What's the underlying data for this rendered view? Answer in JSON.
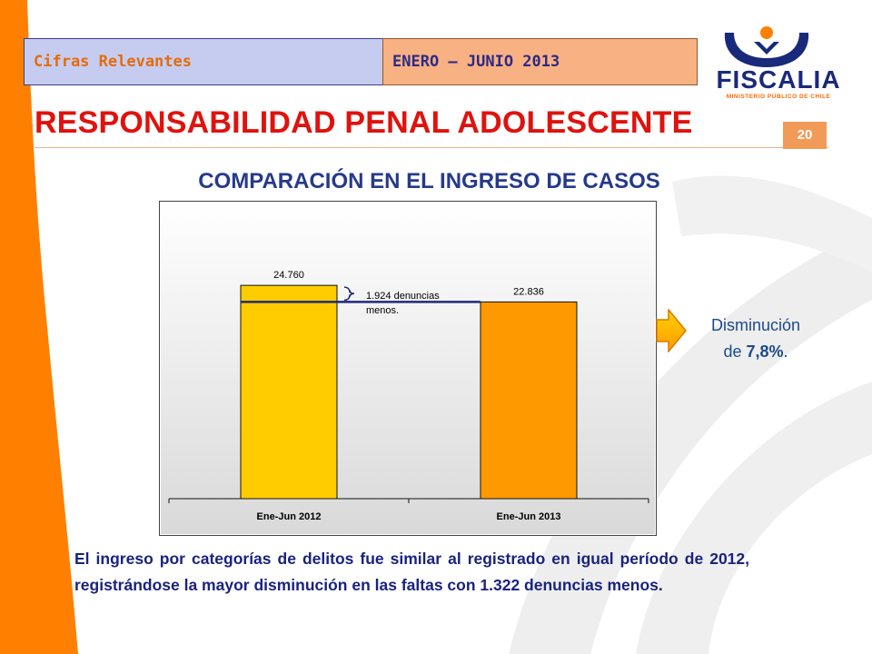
{
  "header": {
    "tab_left": "Cifras Relevantes",
    "tab_right": "ENERO – JUNIO 2013"
  },
  "logo": {
    "name": "FISCALIA",
    "subtitle": "MINISTERIO PÚBLICO DE CHILE"
  },
  "title": "RESPONSABILIDAD PENAL ADOLESCENTE",
  "page_number": "20",
  "subtitle": "COMPARACIÓN EN EL INGRESO DE CASOS",
  "chart_data": {
    "type": "bar",
    "categories": [
      "Ene-Jun 2012",
      "Ene-Jun 2013"
    ],
    "values": [
      24760,
      22836
    ],
    "value_labels": [
      "24.760",
      "22.836"
    ],
    "colors": [
      "#ffcc00",
      "#ff9900"
    ],
    "ylim": [
      0,
      33000
    ],
    "grid": false,
    "annotation": {
      "line1": "1.924 denuncias",
      "line2": "menos."
    }
  },
  "note": {
    "line1": "Disminución",
    "prefix": "de ",
    "percent": "7,8%",
    "suffix": "."
  },
  "paragraph": "El ingreso por categorías de delitos fue similar al registrado en igual período de 2012, registrándose la mayor disminución en las faltas con 1.322 denuncias menos.",
  "colors": {
    "accent_orange": "#ff7f00",
    "title_red": "#e0120d",
    "navy": "#1a237e"
  }
}
